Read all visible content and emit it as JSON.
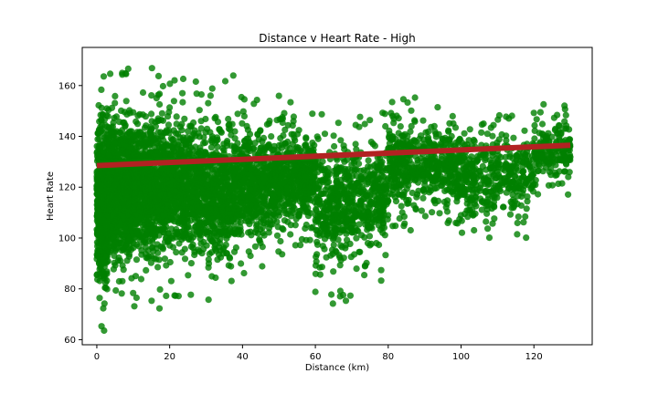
{
  "chart_data": {
    "type": "scatter",
    "title": "Distance v Heart Rate - High",
    "xlabel": "Distance (km)",
    "ylabel": "Heart Rate",
    "xlim": [
      -4,
      136
    ],
    "ylim": [
      58,
      175
    ],
    "xticks": [
      0,
      20,
      40,
      60,
      80,
      100,
      120
    ],
    "yticks": [
      60,
      80,
      100,
      120,
      140,
      160
    ],
    "grid": false,
    "point_color": "#008000",
    "trend_color": "#b22222",
    "trendline": {
      "x": [
        0,
        130
      ],
      "y": [
        128.5,
        136.5
      ]
    },
    "density_bands": [
      {
        "x": [
          0,
          3
        ],
        "ymin": 63,
        "ymax": 164,
        "count": 700
      },
      {
        "x": [
          3,
          10
        ],
        "ymin": 73,
        "ymax": 167,
        "count": 900
      },
      {
        "x": [
          10,
          20
        ],
        "ymin": 72,
        "ymax": 169,
        "count": 900
      },
      {
        "x": [
          20,
          30
        ],
        "ymin": 77,
        "ymax": 163,
        "count": 650
      },
      {
        "x": [
          30,
          40
        ],
        "ymin": 72,
        "ymax": 164,
        "count": 550
      },
      {
        "x": [
          40,
          50
        ],
        "ymin": 84,
        "ymax": 157,
        "count": 450
      },
      {
        "x": [
          50,
          60
        ],
        "ymin": 92,
        "ymax": 156,
        "count": 400
      },
      {
        "x": [
          60,
          70
        ],
        "ymin": 73,
        "ymax": 152,
        "count": 350
      },
      {
        "x": [
          70,
          80
        ],
        "ymin": 83,
        "ymax": 150,
        "count": 300
      },
      {
        "x": [
          80,
          90
        ],
        "ymin": 100,
        "ymax": 157,
        "count": 280
      },
      {
        "x": [
          90,
          100
        ],
        "ymin": 104,
        "ymax": 154,
        "count": 250
      },
      {
        "x": [
          100,
          110
        ],
        "ymin": 96,
        "ymax": 152,
        "count": 220
      },
      {
        "x": [
          110,
          120
        ],
        "ymin": 98,
        "ymax": 150,
        "count": 180
      },
      {
        "x": [
          120,
          130
        ],
        "ymin": 116,
        "ymax": 153,
        "count": 180
      }
    ]
  }
}
